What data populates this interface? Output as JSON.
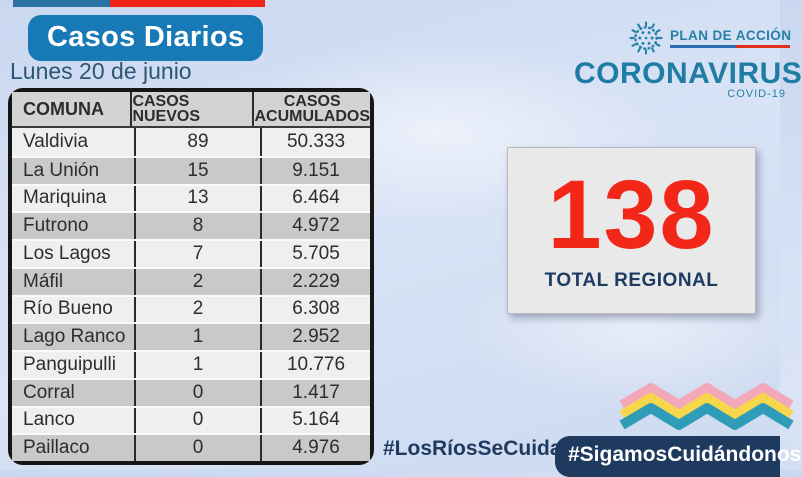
{
  "header": {
    "title": "Casos Diarios",
    "date": "Lunes 20 de junio"
  },
  "logo": {
    "plan_label": "PLAN DE ACCIÓN",
    "name": "CORONAVIRUS",
    "sub": "COVID-19"
  },
  "summary": {
    "total": "138",
    "label": "TOTAL REGIONAL"
  },
  "footer": {
    "hashtag_left": "#LosRíosSeCuida",
    "hashtag_right": "#SigamosCuidándonos"
  },
  "chart_data": {
    "type": "table",
    "title": "Casos Diarios",
    "subtitle": "Lunes 20 de junio",
    "columns": [
      "COMUNA",
      "CASOS NUEVOS",
      "CASOS ACUMULADOS"
    ],
    "rows": [
      [
        "Valdivia",
        "89",
        "50.333"
      ],
      [
        "La Unión",
        "15",
        "9.151"
      ],
      [
        "Mariquina",
        "13",
        "6.464"
      ],
      [
        "Futrono",
        "8",
        "4.972"
      ],
      [
        "Los Lagos",
        "7",
        "5.705"
      ],
      [
        "Máfil",
        "2",
        "2.229"
      ],
      [
        "Río Bueno",
        "2",
        "6.308"
      ],
      [
        "Lago Ranco",
        "1",
        "2.952"
      ],
      [
        "Panguipulli",
        "1",
        "10.776"
      ],
      [
        "Corral",
        "0",
        "1.417"
      ],
      [
        "Lanco",
        "0",
        "5.164"
      ],
      [
        "Paillaco",
        "0",
        "4.976"
      ]
    ],
    "total_regional": 138
  },
  "colors": {
    "title_badge_blue": "#1779b5",
    "flag_blue": "#2b72a4",
    "flag_red": "#ee2418",
    "table_header_gray": "#d3d3d4",
    "row_light": "#efeff0",
    "row_dark": "#c9c9ca",
    "total_red": "#f22718",
    "navy": "#1e3a5e",
    "logo_teal": "#2581a6",
    "zigzag_pink": "#f3a8ba",
    "zigzag_yellow": "#f6d64b",
    "zigzag_teal": "#2f9db8",
    "sky_background": "#d1def3"
  }
}
